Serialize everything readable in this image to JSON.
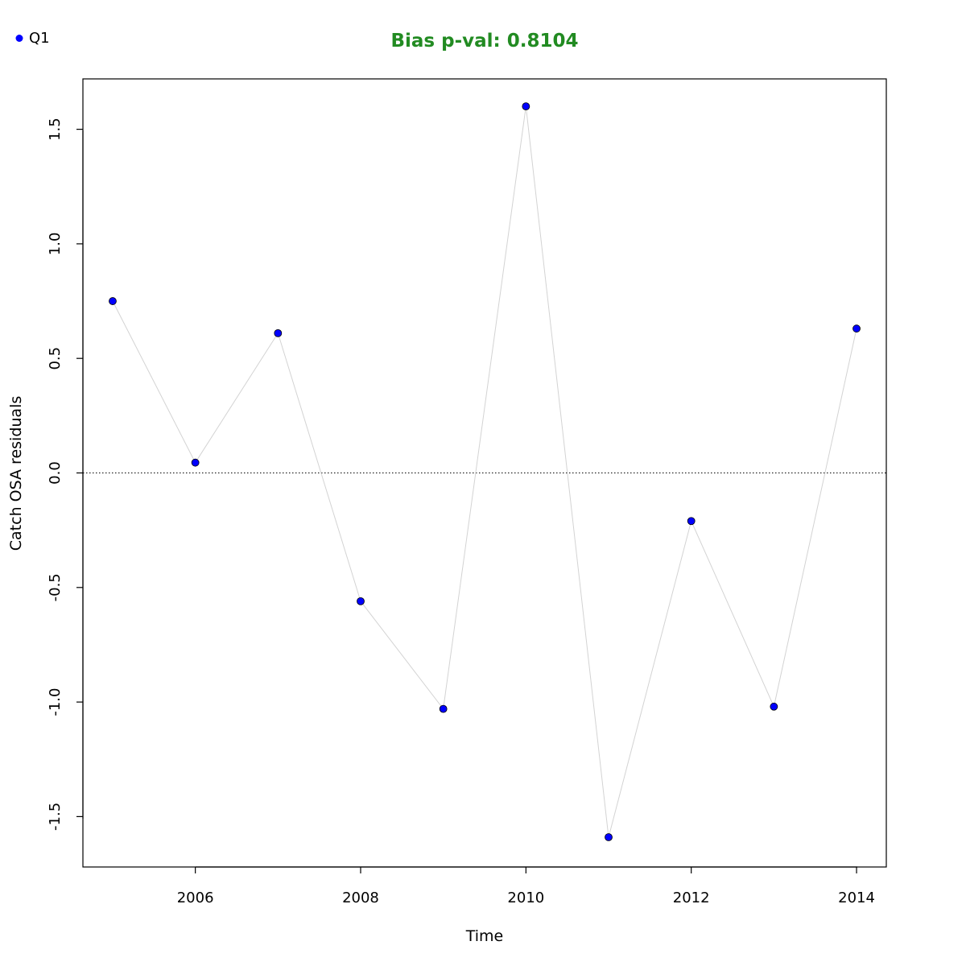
{
  "chart_data": {
    "type": "scatter",
    "title": "Bias p-val: 0.8104",
    "title_color": "#228b22",
    "xlabel": "Time",
    "ylabel": "Catch OSA residuals",
    "xlim": [
      2004.64,
      2014.36
    ],
    "ylim": [
      -1.72,
      1.72
    ],
    "x_ticks": [
      2006,
      2008,
      2010,
      2012,
      2014
    ],
    "x_tick_labels": [
      "2006",
      "2008",
      "2010",
      "2012",
      "2014"
    ],
    "y_ticks": [
      -1.5,
      -1.0,
      -0.5,
      0.0,
      0.5,
      1.0,
      1.5
    ],
    "y_tick_labels": [
      "-1.5",
      "-1.0",
      "-0.5",
      "0.0",
      "0.5",
      "1.0",
      "1.5"
    ],
    "reference_line": 0.0,
    "legend_position": "top-left",
    "line_color": "#d3d3d3",
    "point_color": "#0000ff",
    "series": [
      {
        "name": "Q1",
        "x": [
          2005,
          2006,
          2007,
          2008,
          2009,
          2010,
          2011,
          2012,
          2013,
          2014
        ],
        "y": [
          0.75,
          0.045,
          0.61,
          -0.56,
          -1.03,
          1.6,
          -1.59,
          -0.21,
          -1.02,
          0.63
        ]
      }
    ]
  }
}
